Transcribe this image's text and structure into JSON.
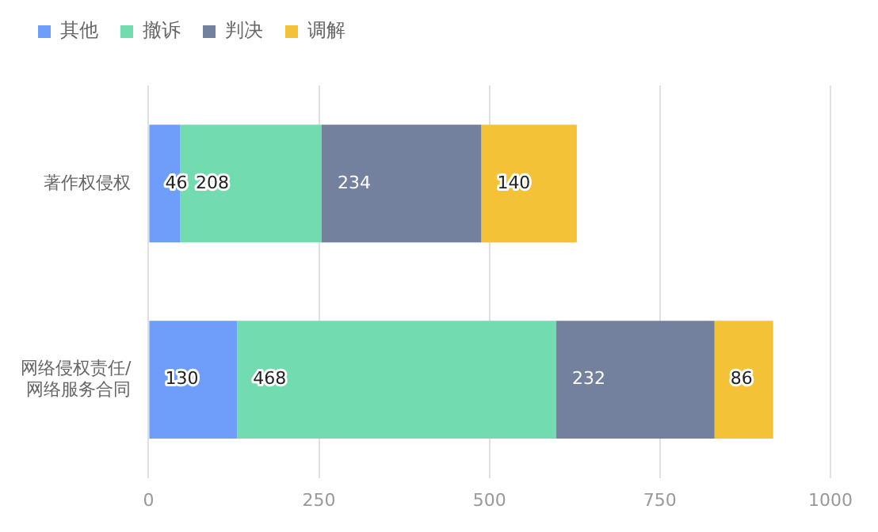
{
  "chart_data": {
    "type": "bar",
    "orientation": "horizontal",
    "stacked": true,
    "categories": [
      "著作权侵权",
      "网络侵权责任/网络服务合同"
    ],
    "series": [
      {
        "name": "其他",
        "color": "#6e9ef9",
        "values": [
          46,
          130
        ]
      },
      {
        "name": "撤诉",
        "color": "#72dcb0",
        "values": [
          208,
          468
        ]
      },
      {
        "name": "判决",
        "color": "#73809e",
        "values": [
          234,
          232
        ]
      },
      {
        "name": "调解",
        "color": "#f4c236",
        "values": [
          140,
          86
        ]
      }
    ],
    "xlim": [
      0,
      1000
    ],
    "xticks": [
      0,
      250,
      500,
      750,
      1000
    ],
    "grid": "x",
    "legend": "top left",
    "data_labels": true
  }
}
